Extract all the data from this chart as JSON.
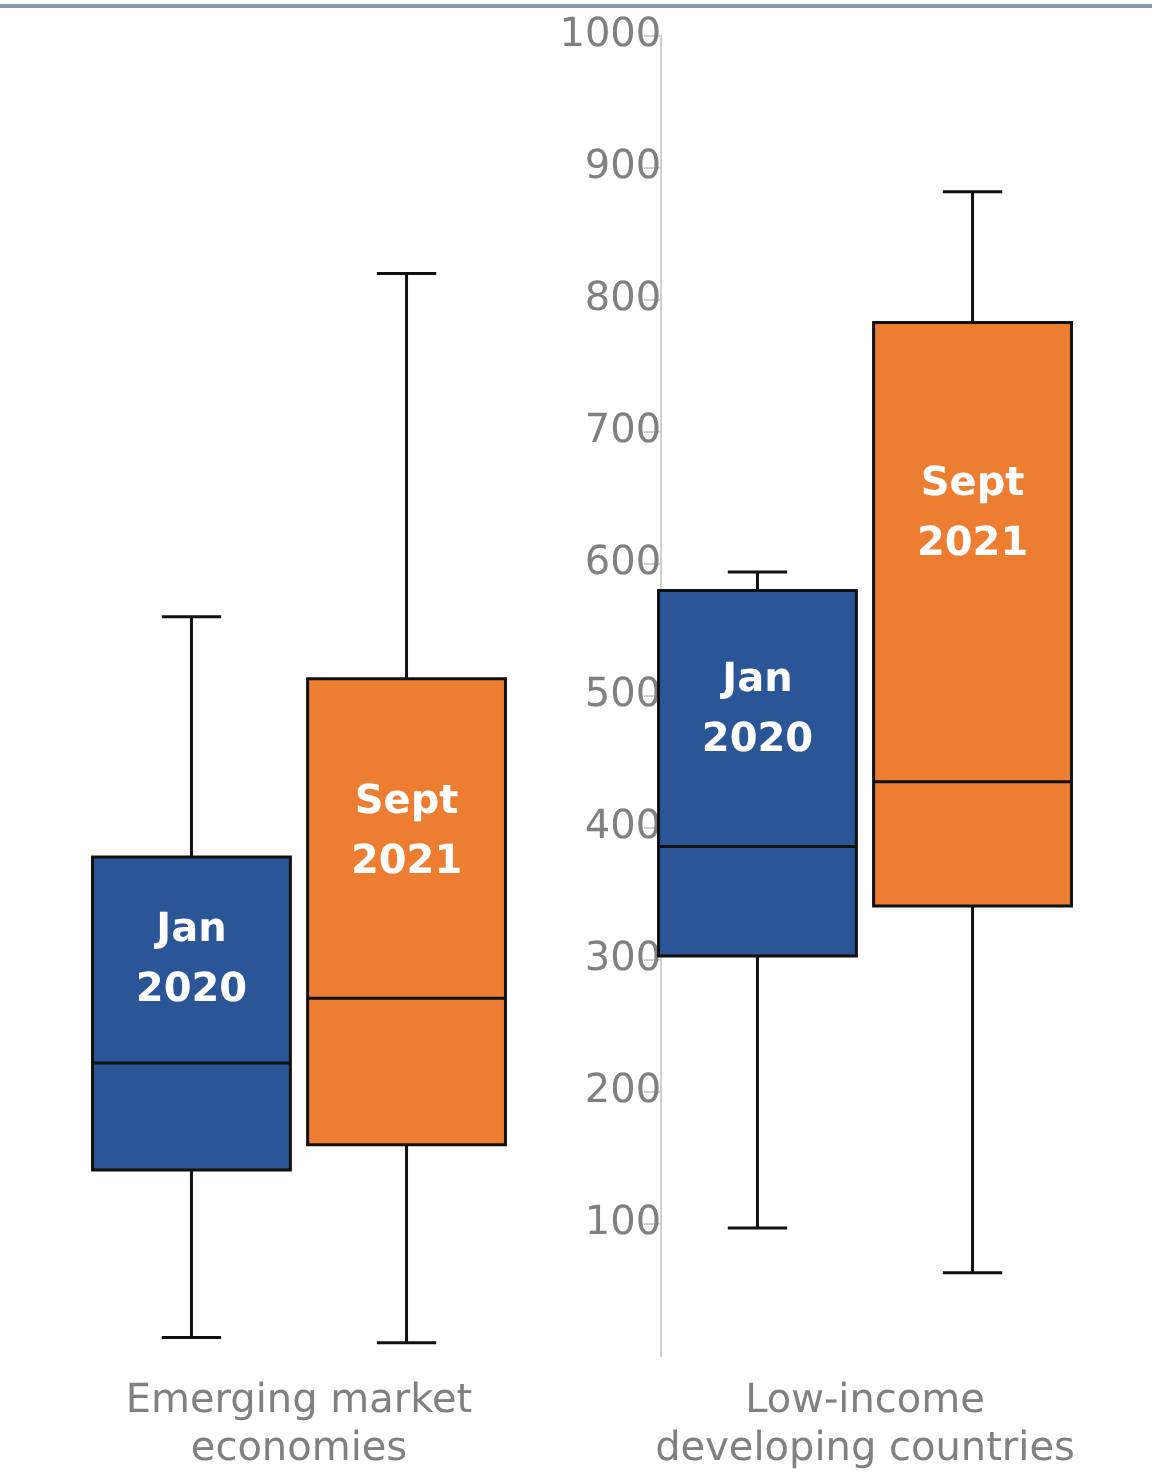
{
  "chart_data": {
    "type": "box",
    "categories": [
      "Emerging market economies",
      "Low-income developing countries"
    ],
    "series": [
      {
        "name": "Jan 2020",
        "color": "#2a5597",
        "boxes": [
          {
            "low": 14,
            "q1": 141,
            "median": 222,
            "q3": 378,
            "high": 560
          },
          {
            "low": 97,
            "q1": 303,
            "median": 386,
            "q3": 580,
            "high": 594
          }
        ]
      },
      {
        "name": "Sept 2021",
        "color": "#ed7d31",
        "boxes": [
          {
            "low": 10,
            "q1": 160,
            "median": 271,
            "q3": 513,
            "high": 820
          },
          {
            "low": 63,
            "q1": 341,
            "median": 435,
            "q3": 783,
            "high": 882
          }
        ]
      }
    ],
    "ylim": [
      0,
      1000
    ],
    "yticks": [
      100,
      200,
      300,
      400,
      500,
      600,
      700,
      800,
      900,
      1000
    ],
    "grid": false,
    "legend": false
  }
}
